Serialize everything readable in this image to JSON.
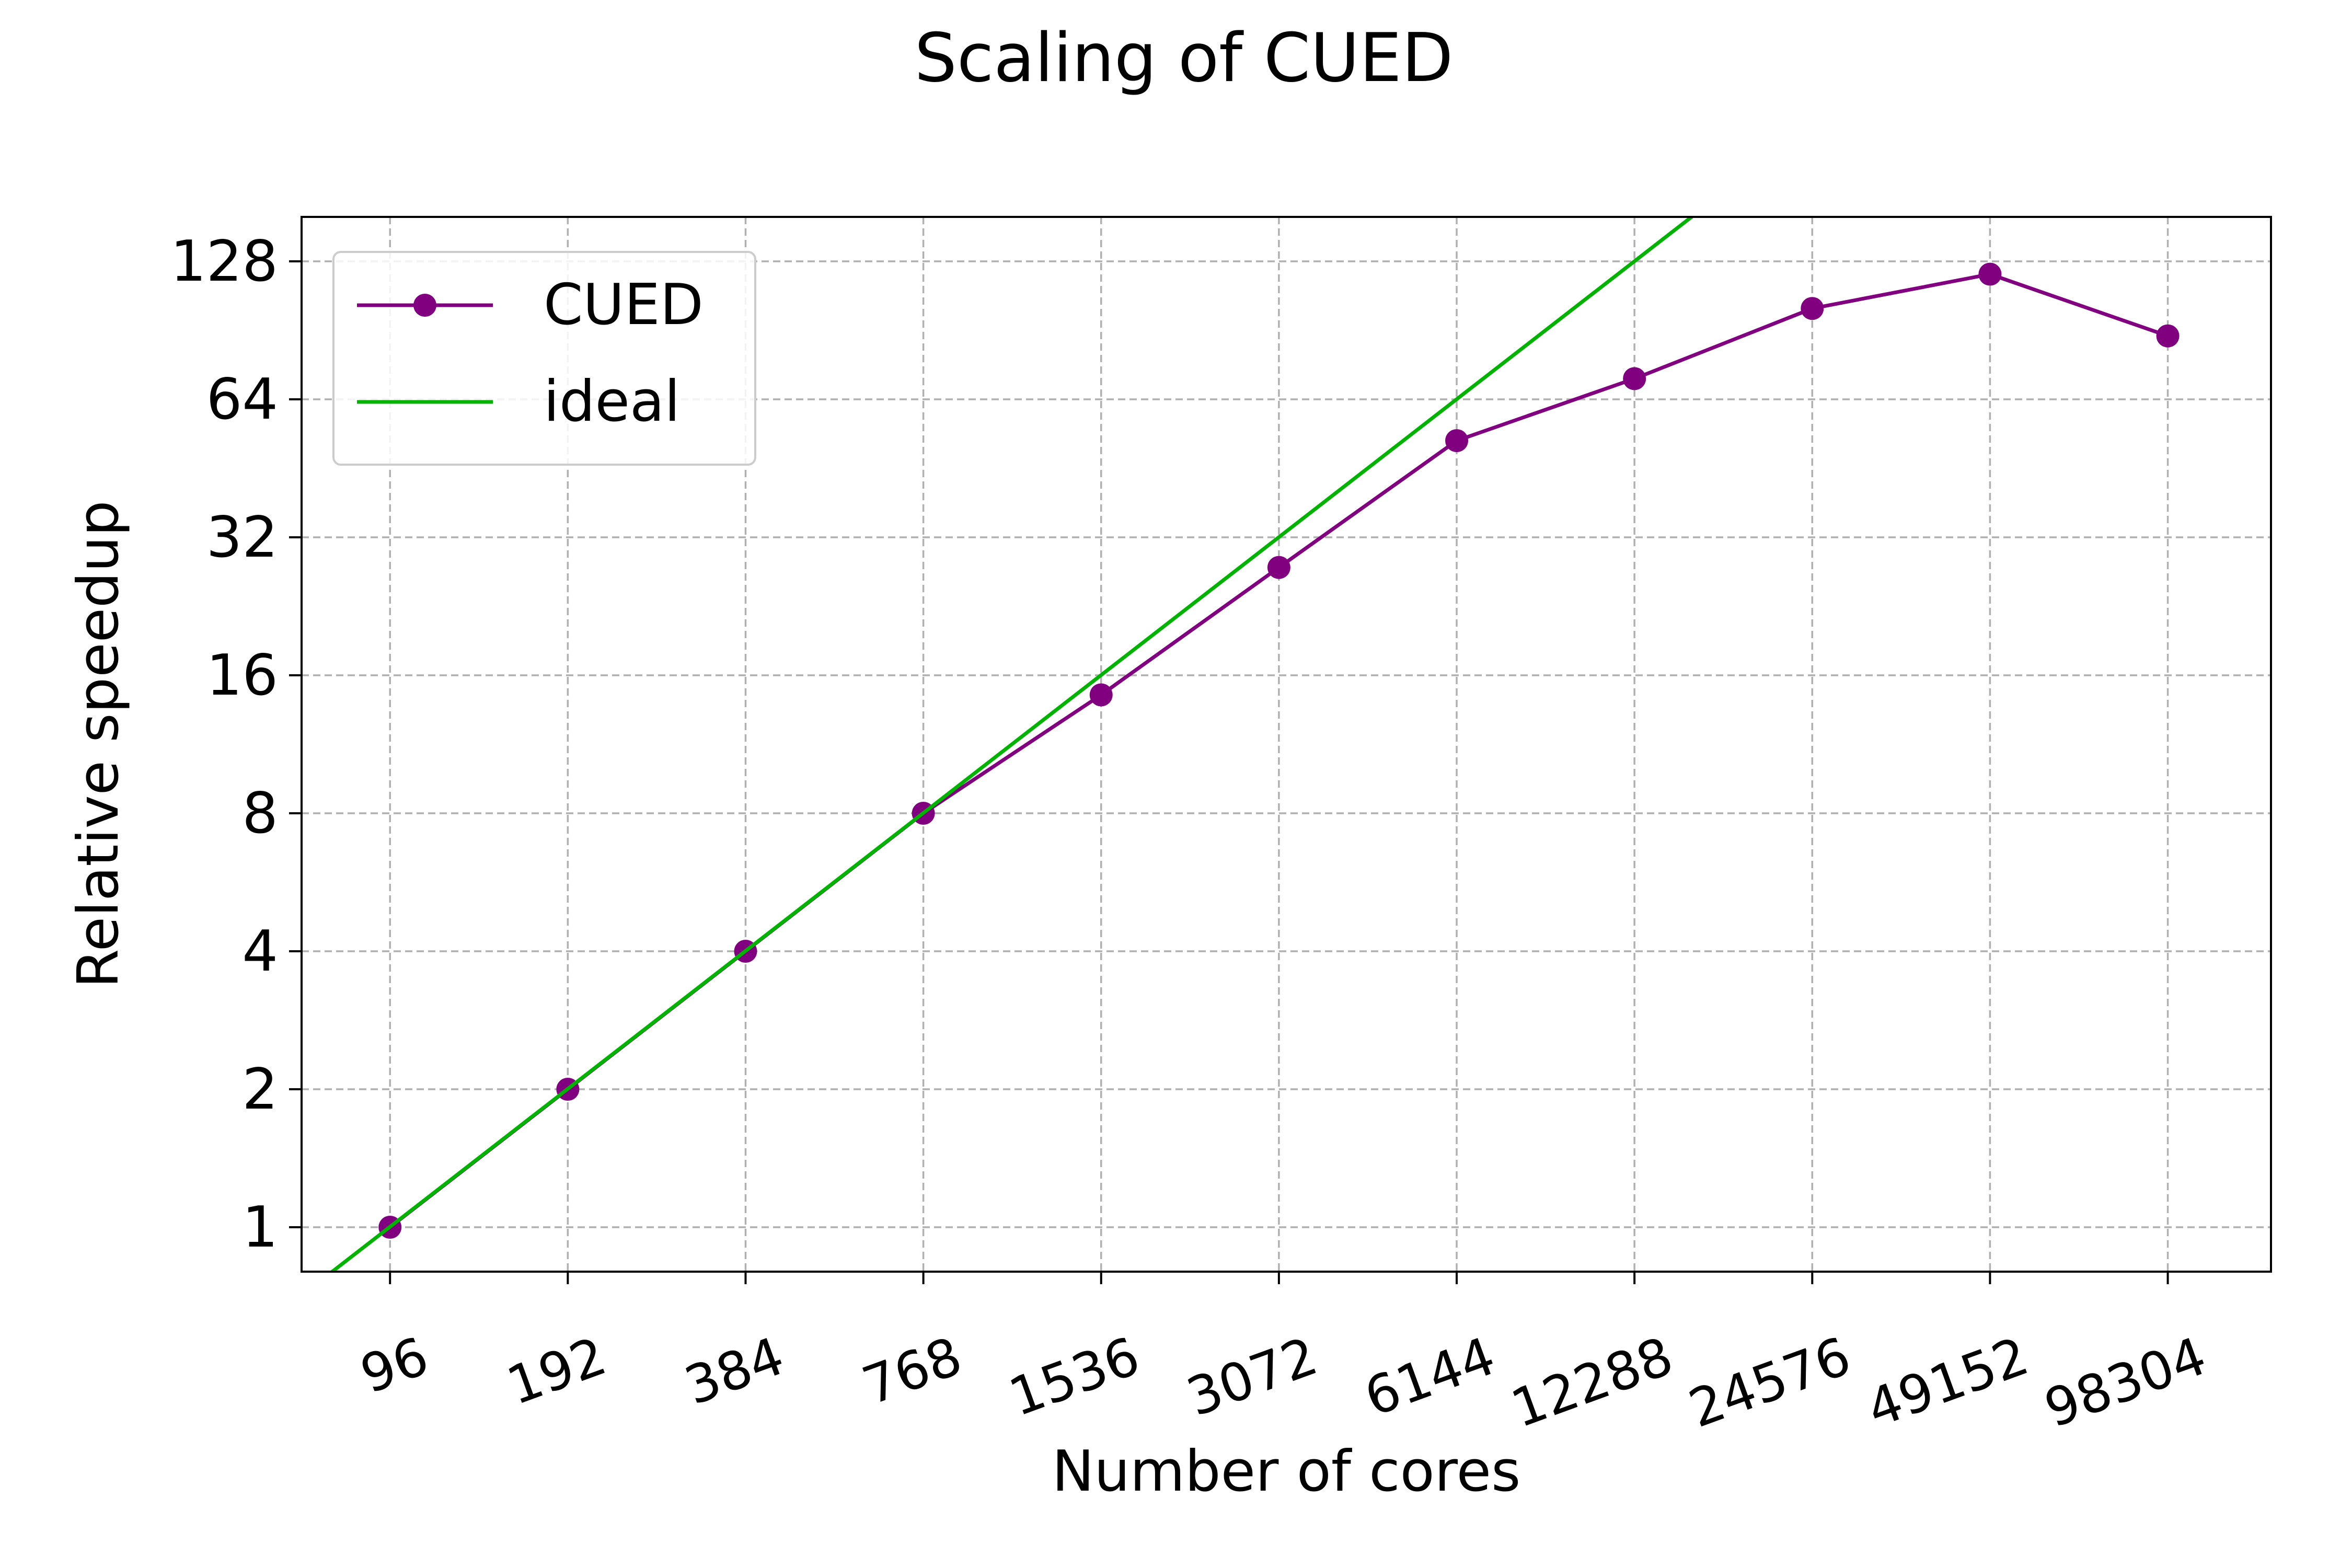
{
  "colors": {
    "cued": "#800080",
    "ideal": "#00b300",
    "grid": "#b0b0b0",
    "axis": "#000000"
  },
  "chart_data": {
    "type": "line",
    "title": "Scaling of CUED",
    "xlabel": "Number of cores",
    "ylabel": "Relative speedup",
    "x_scale": "log2",
    "y_scale": "log2",
    "x_ticks": [
      96,
      192,
      384,
      768,
      1536,
      3072,
      6144,
      12288,
      24576,
      49152,
      98304
    ],
    "x_tick_labels": [
      "96",
      "192",
      "384",
      "768",
      "1536",
      "3072",
      "6144",
      "12288",
      "24576",
      "49152",
      "98304"
    ],
    "y_ticks": [
      1,
      2,
      4,
      8,
      16,
      32,
      64,
      128
    ],
    "y_tick_labels": [
      "1",
      "2",
      "4",
      "8",
      "16",
      "32",
      "64",
      "128"
    ],
    "xlim": [
      68,
      147000
    ],
    "ylim": [
      0.8,
      160
    ],
    "grid": true,
    "legend_position": "top-left",
    "series": [
      {
        "name": "CUED",
        "style": "line-with-markers",
        "color": "#800080",
        "x": [
          96,
          192,
          384,
          768,
          1536,
          3072,
          6144,
          12288,
          24576,
          49152,
          98304
        ],
        "y": [
          1,
          2,
          4,
          8,
          14.5,
          27.5,
          52,
          71,
          101,
          120,
          88
        ]
      },
      {
        "name": "ideal",
        "style": "line",
        "color": "#00b300",
        "x": [
          68,
          18200
        ],
        "y": [
          0.71,
          189.6
        ]
      }
    ]
  }
}
